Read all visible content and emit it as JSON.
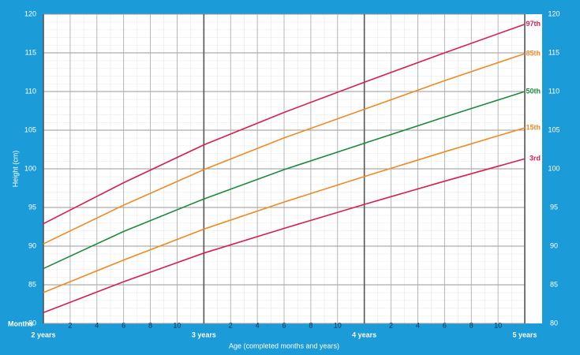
{
  "chart_data": {
    "type": "line",
    "xlabel": "Age (completed months and years)",
    "ylabel": "Height (cm)",
    "months_label": "Months",
    "x": [
      24,
      30,
      36,
      42,
      48,
      54,
      60
    ],
    "xlim": [
      24,
      60
    ],
    "ylim": [
      80,
      120
    ],
    "yticks": [
      80,
      85,
      90,
      95,
      100,
      105,
      110,
      115,
      120
    ],
    "xticks": [
      {
        "value": 26,
        "label": "2"
      },
      {
        "value": 28,
        "label": "4"
      },
      {
        "value": 30,
        "label": "6"
      },
      {
        "value": 32,
        "label": "8"
      },
      {
        "value": 34,
        "label": "10"
      },
      {
        "value": 38,
        "label": "2"
      },
      {
        "value": 40,
        "label": "4"
      },
      {
        "value": 42,
        "label": "6"
      },
      {
        "value": 44,
        "label": "8"
      },
      {
        "value": 46,
        "label": "10"
      },
      {
        "value": 50,
        "label": "2"
      },
      {
        "value": 52,
        "label": "4"
      },
      {
        "value": 54,
        "label": "6"
      },
      {
        "value": 56,
        "label": "8"
      },
      {
        "value": 58,
        "label": "10"
      }
    ],
    "year_ticks": [
      {
        "value": 24,
        "label": "2 years"
      },
      {
        "value": 36,
        "label": "3 years"
      },
      {
        "value": 48,
        "label": "4 years"
      },
      {
        "value": 60,
        "label": "5 years"
      }
    ],
    "series": [
      {
        "name": "97th",
        "color": "#d81f4f",
        "values": [
          92.9,
          98.2,
          103.1,
          107.3,
          111.2,
          115.0,
          118.7
        ]
      },
      {
        "name": "85th",
        "color": "#f08a24",
        "values": [
          90.3,
          95.3,
          99.9,
          104.0,
          107.7,
          111.4,
          114.9
        ]
      },
      {
        "name": "50th",
        "color": "#1e8a3c",
        "values": [
          87.1,
          91.9,
          96.1,
          99.9,
          103.3,
          106.7,
          110.0
        ]
      },
      {
        "name": "15th",
        "color": "#f08a24",
        "values": [
          84.0,
          88.2,
          92.2,
          95.7,
          99.0,
          102.2,
          105.3
        ]
      },
      {
        "name": "3rd",
        "color": "#d81f4f",
        "values": [
          81.4,
          85.4,
          89.1,
          92.3,
          95.4,
          98.4,
          101.3
        ]
      }
    ]
  }
}
